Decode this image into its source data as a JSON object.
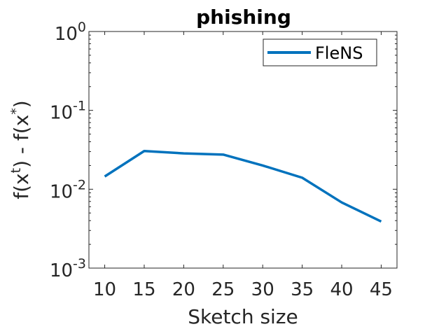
{
  "chart_data": {
    "type": "line",
    "title": "phishing",
    "xlabel": "Sketch size",
    "ylabel": "f(x^t) - f(x^*)",
    "yscale": "log",
    "xlim": [
      8,
      47
    ],
    "ylim": [
      0.001,
      1
    ],
    "xticks": [
      10,
      15,
      20,
      25,
      30,
      35,
      40,
      45
    ],
    "yticks": [
      {
        "value": 0.001,
        "base": "10",
        "exp": "-3"
      },
      {
        "value": 0.01,
        "base": "10",
        "exp": "-2"
      },
      {
        "value": 0.1,
        "base": "10",
        "exp": "-1"
      },
      {
        "value": 1,
        "base": "10",
        "exp": "0"
      }
    ],
    "grid": false,
    "legend_position": "top-right",
    "series": [
      {
        "name": "FleNS",
        "color": "#0072BD",
        "x": [
          10,
          15,
          20,
          25,
          30,
          35,
          40,
          45
        ],
        "y": [
          0.0145,
          0.0305,
          0.0285,
          0.0275,
          0.02,
          0.014,
          0.0068,
          0.0039
        ]
      }
    ]
  }
}
